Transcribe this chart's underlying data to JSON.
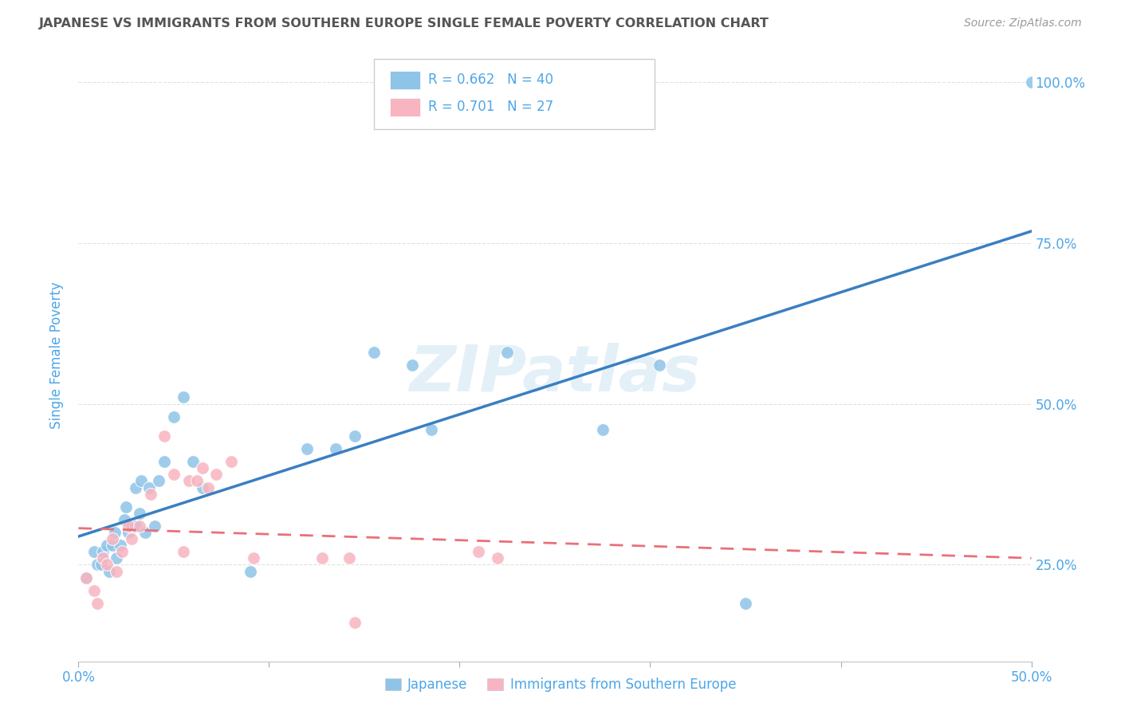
{
  "title": "JAPANESE VS IMMIGRANTS FROM SOUTHERN EUROPE SINGLE FEMALE POVERTY CORRELATION CHART",
  "source": "Source: ZipAtlas.com",
  "ylabel": "Single Female Poverty",
  "watermark": "ZIPatlas",
  "xlim": [
    0.0,
    0.5
  ],
  "ylim": [
    0.1,
    1.05
  ],
  "xticks": [
    0.0,
    0.1,
    0.2,
    0.3,
    0.4,
    0.5
  ],
  "yticks": [
    0.25,
    0.5,
    0.75,
    1.0
  ],
  "ytick_labels": [
    "25.0%",
    "50.0%",
    "75.0%",
    "100.0%"
  ],
  "xtick_labels": [
    "0.0%",
    "",
    "",
    "",
    "",
    "50.0%"
  ],
  "legend_blue_r": "0.662",
  "legend_blue_n": "40",
  "legend_pink_r": "0.701",
  "legend_pink_n": "27",
  "blue_color": "#8ec4e8",
  "pink_color": "#f8b4c0",
  "blue_line_color": "#3a7fc1",
  "pink_line_color": "#e8707a",
  "axis_label_color": "#4da6e8",
  "title_color": "#555555",
  "grid_color": "#dddddd",
  "background_color": "#ffffff",
  "blue_scatter_x": [
    0.004,
    0.008,
    0.01,
    0.012,
    0.013,
    0.015,
    0.016,
    0.018,
    0.019,
    0.02,
    0.022,
    0.024,
    0.025,
    0.026,
    0.028,
    0.03,
    0.03,
    0.032,
    0.033,
    0.035,
    0.037,
    0.04,
    0.042,
    0.045,
    0.05,
    0.055,
    0.06,
    0.065,
    0.09,
    0.12,
    0.135,
    0.145,
    0.155,
    0.175,
    0.185,
    0.225,
    0.275,
    0.305,
    0.35,
    0.5
  ],
  "blue_scatter_y": [
    0.23,
    0.27,
    0.25,
    0.25,
    0.27,
    0.28,
    0.24,
    0.28,
    0.3,
    0.26,
    0.28,
    0.32,
    0.34,
    0.3,
    0.31,
    0.37,
    0.31,
    0.33,
    0.38,
    0.3,
    0.37,
    0.31,
    0.38,
    0.41,
    0.48,
    0.51,
    0.41,
    0.37,
    0.24,
    0.43,
    0.43,
    0.45,
    0.58,
    0.56,
    0.46,
    0.58,
    0.46,
    0.56,
    0.19,
    1.0
  ],
  "pink_scatter_x": [
    0.004,
    0.008,
    0.01,
    0.013,
    0.015,
    0.018,
    0.02,
    0.023,
    0.026,
    0.028,
    0.032,
    0.038,
    0.045,
    0.05,
    0.055,
    0.058,
    0.062,
    0.065,
    0.068,
    0.072,
    0.08,
    0.092,
    0.128,
    0.142,
    0.145,
    0.21,
    0.22
  ],
  "pink_scatter_y": [
    0.23,
    0.21,
    0.19,
    0.26,
    0.25,
    0.29,
    0.24,
    0.27,
    0.31,
    0.29,
    0.31,
    0.36,
    0.45,
    0.39,
    0.27,
    0.38,
    0.38,
    0.4,
    0.37,
    0.39,
    0.41,
    0.26,
    0.26,
    0.26,
    0.16,
    0.27,
    0.26
  ]
}
